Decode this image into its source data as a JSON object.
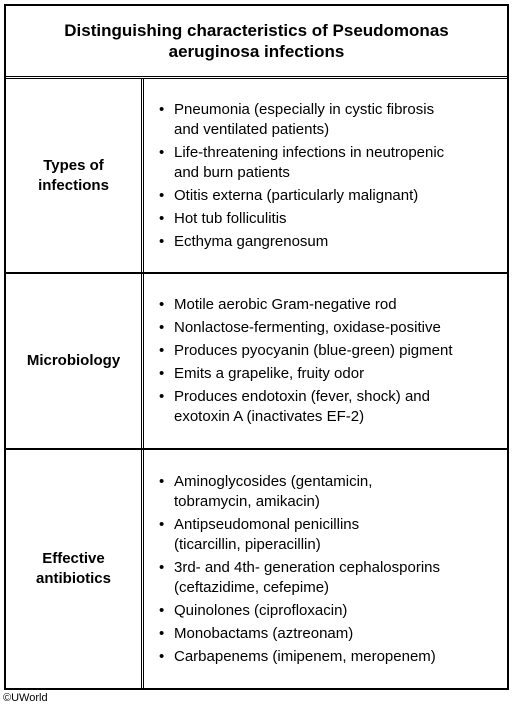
{
  "title": {
    "line1": "Distinguishing characteristics of Pseudomonas",
    "line2": "aeruginosa infections"
  },
  "rows": [
    {
      "label_lines": [
        "Types of",
        "infections"
      ],
      "items": [
        [
          "Pneumonia (especially in cystic fibrosis",
          "and ventilated patients)"
        ],
        [
          "Life-threatening infections in neutropenic",
          "and burn patients"
        ],
        [
          "Otitis externa (particularly malignant)"
        ],
        [
          "Hot tub folliculitis"
        ],
        [
          "Ecthyma gangrenosum"
        ]
      ]
    },
    {
      "label_lines": [
        "Microbiology"
      ],
      "items": [
        [
          "Motile aerobic Gram-negative rod"
        ],
        [
          "Nonlactose-fermenting, oxidase-positive"
        ],
        [
          "Produces pyocyanin (blue-green) pigment"
        ],
        [
          "Emits a grapelike, fruity odor"
        ],
        [
          "Produces endotoxin (fever, shock) and",
          "exotoxin A (inactivates EF-2)"
        ]
      ]
    },
    {
      "label_lines": [
        "Effective",
        "antibiotics"
      ],
      "items": [
        [
          "Aminoglycosides (gentamicin,",
          "tobramycin, amikacin)"
        ],
        [
          "Antipseudomonal penicillins",
          "(ticarcillin, piperacillin)"
        ],
        [
          "3rd- and 4th- generation cephalosporins",
          "(ceftazidime, cefepime)"
        ],
        [
          "Quinolones (ciprofloxacin)"
        ],
        [
          "Monobactams (aztreonam)"
        ],
        [
          "Carbapenems (imipenem, meropenem)"
        ]
      ]
    }
  ],
  "bullet_glyph": "•",
  "copyright": "©UWorld"
}
